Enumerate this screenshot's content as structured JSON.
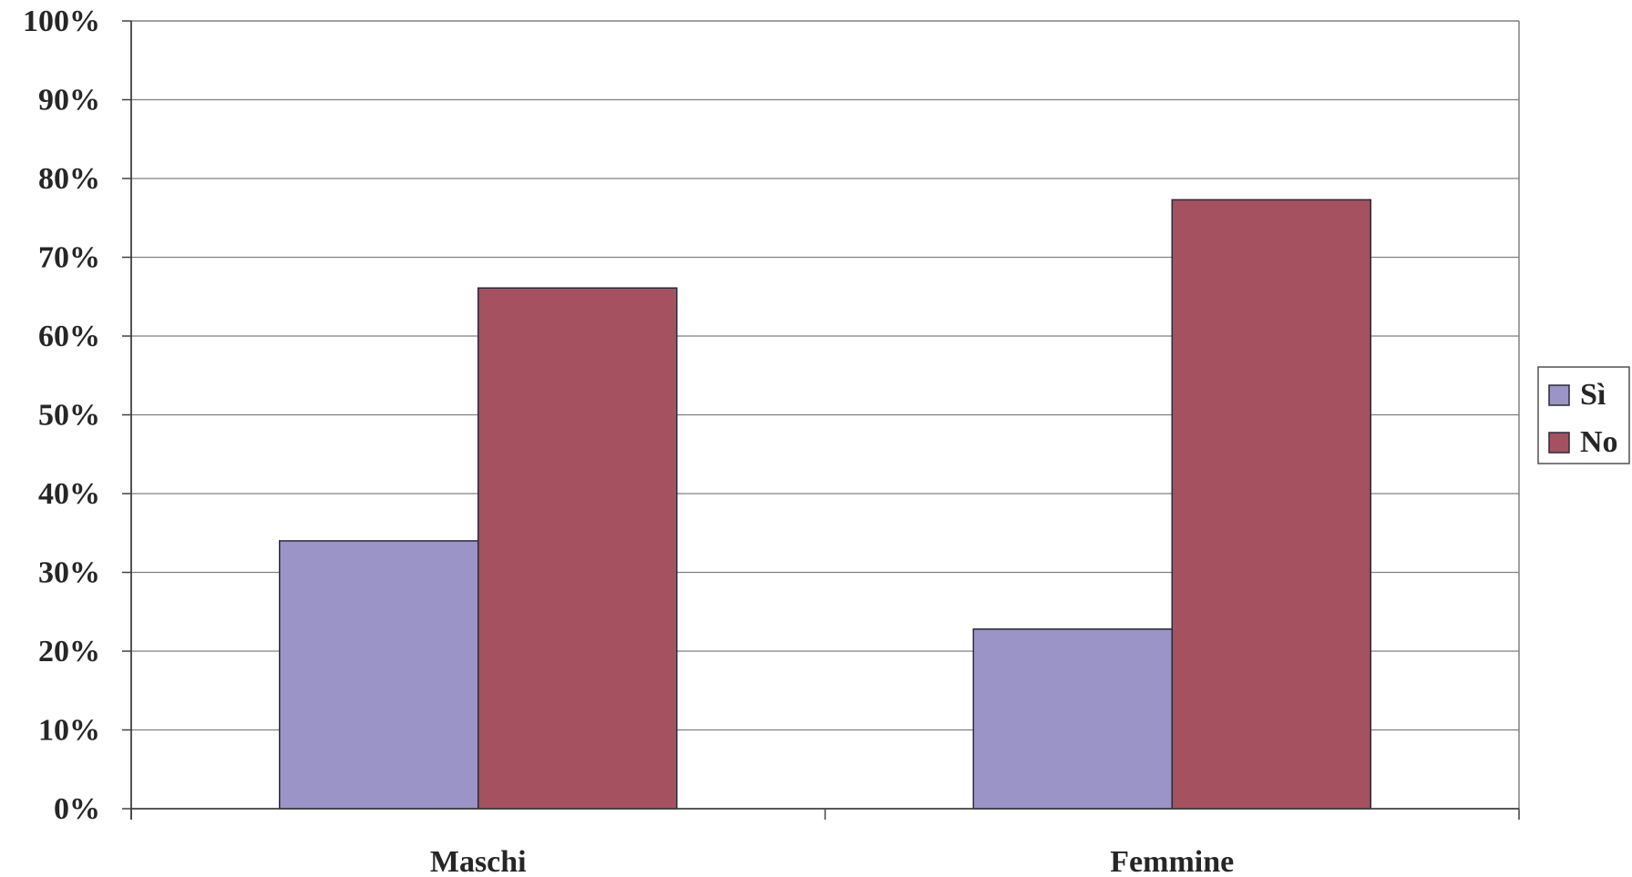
{
  "chart_data": {
    "type": "bar",
    "categories": [
      "Maschi",
      "Femmine"
    ],
    "series": [
      {
        "name": "Sì",
        "values": [
          34,
          22.8
        ],
        "color": "#9a94c7"
      },
      {
        "name": "No",
        "values": [
          66.1,
          77.3
        ],
        "color": "#a5515f"
      }
    ],
    "ylim": [
      0,
      100
    ],
    "yticks": [
      "0%",
      "10%",
      "20%",
      "30%",
      "40%",
      "50%",
      "60%",
      "70%",
      "80%",
      "90%",
      "100%"
    ],
    "grid": true,
    "legend_position": "right",
    "title": "",
    "xlabel": "",
    "ylabel": ""
  }
}
